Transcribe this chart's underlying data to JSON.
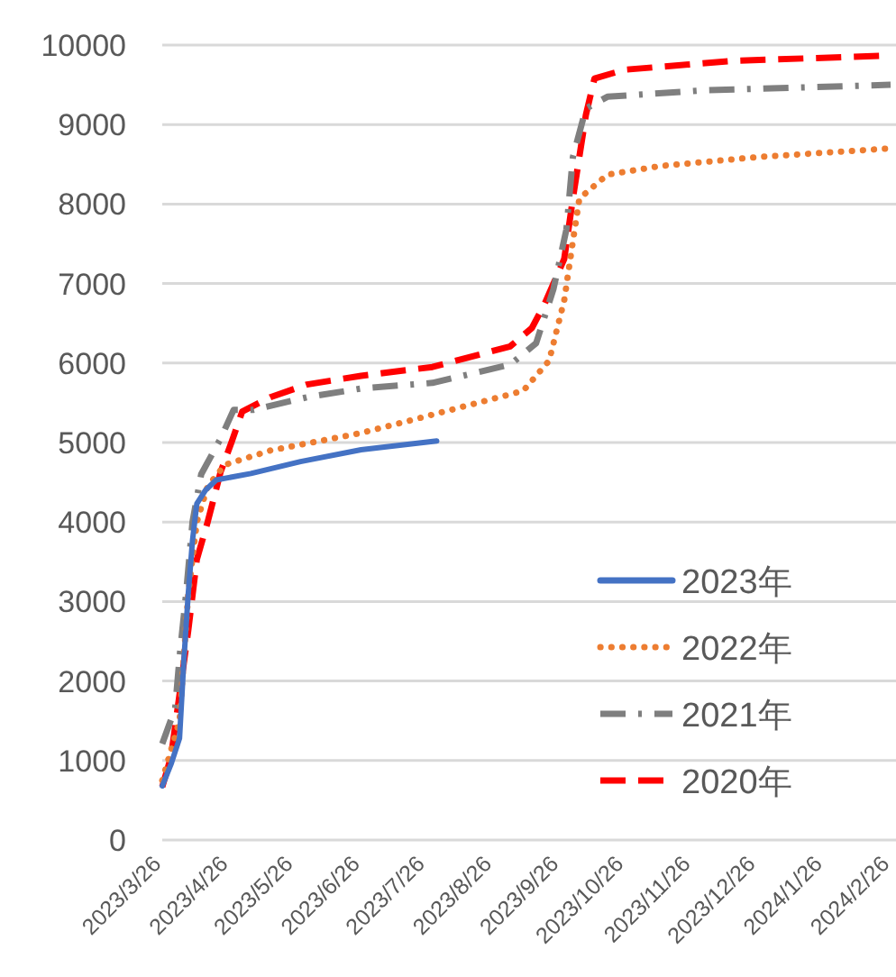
{
  "chart_data": {
    "type": "line",
    "xlim": [
      "2023-03-26",
      "2024-02-26"
    ],
    "xticks": [
      {
        "value": "2023-03-26",
        "label": "2023/3/26"
      },
      {
        "value": "2023-04-26",
        "label": "2023/4/26"
      },
      {
        "value": "2023-05-26",
        "label": "2023/5/26"
      },
      {
        "value": "2023-06-26",
        "label": "2023/6/26"
      },
      {
        "value": "2023-07-26",
        "label": "2023/7/26"
      },
      {
        "value": "2023-08-26",
        "label": "2023/8/26"
      },
      {
        "value": "2023-09-26",
        "label": "2023/9/26"
      },
      {
        "value": "2023-10-26",
        "label": "2023/10/26"
      },
      {
        "value": "2023-11-26",
        "label": "2023/11/26"
      },
      {
        "value": "2023-12-26",
        "label": "2023/12/26"
      },
      {
        "value": "2024-01-26",
        "label": "2024/1/26"
      },
      {
        "value": "2024-02-26",
        "label": "2024/2/26"
      }
    ],
    "ylim": [
      0,
      10000
    ],
    "yticks": [
      0,
      1000,
      2000,
      3000,
      4000,
      5000,
      6000,
      7000,
      8000,
      9000,
      10000
    ],
    "grid": "y",
    "legend": "bottom right",
    "marker": "none",
    "series": [
      {
        "name": "2023年",
        "color": "#4472c4",
        "line_style": "solid",
        "x": [
          "2023-03-26",
          "2023-03-30",
          "2023-04-03",
          "2023-04-05",
          "2023-04-07",
          "2023-04-09",
          "2023-04-11",
          "2023-04-15",
          "2023-04-20",
          "2023-05-06",
          "2023-05-29",
          "2023-06-26",
          "2023-07-31"
        ],
        "values": [
          680,
          950,
          1280,
          2260,
          3090,
          3770,
          4230,
          4400,
          4530,
          4610,
          4760,
          4910,
          5020
        ]
      },
      {
        "name": "2022年",
        "color": "#ed7d31",
        "line_style": "dotted",
        "x": [
          "2023-03-26",
          "2023-04-03",
          "2023-04-07",
          "2023-04-11",
          "2023-04-16",
          "2023-04-24",
          "2023-05-15",
          "2023-06-26",
          "2023-07-29",
          "2023-09-09",
          "2023-09-21",
          "2023-09-28",
          "2023-10-02",
          "2023-10-05",
          "2023-10-18",
          "2023-11-12",
          "2023-12-26",
          "2024-02-26"
        ],
        "values": [
          750,
          1500,
          3090,
          4000,
          4450,
          4720,
          4900,
          5120,
          5350,
          5650,
          6030,
          6790,
          7530,
          8070,
          8370,
          8480,
          8590,
          8700
        ]
      },
      {
        "name": "2021年",
        "color": "#7f7f7f",
        "line_style": "dashdot",
        "x": [
          "2023-03-26",
          "2023-04-01",
          "2023-04-03",
          "2023-04-06",
          "2023-04-09",
          "2023-04-13",
          "2023-04-22",
          "2023-04-28",
          "2023-05-07",
          "2023-06-01",
          "2023-06-26",
          "2023-07-29",
          "2023-09-03",
          "2023-09-15",
          "2023-09-23",
          "2023-09-29",
          "2023-10-02",
          "2023-10-08",
          "2023-10-18",
          "2023-12-01",
          "2024-02-26"
        ],
        "values": [
          1210,
          1660,
          2300,
          3090,
          4000,
          4600,
          5050,
          5410,
          5410,
          5570,
          5680,
          5750,
          5980,
          6250,
          6930,
          7680,
          8590,
          9200,
          9350,
          9430,
          9500
        ]
      },
      {
        "name": "2020年",
        "color": "#ff0000",
        "line_style": "dashed",
        "x": [
          "2023-03-26",
          "2023-03-30",
          "2023-04-03",
          "2023-04-07",
          "2023-04-11",
          "2023-04-16",
          "2023-04-22",
          "2023-04-27",
          "2023-05-02",
          "2023-05-15",
          "2023-06-01",
          "2023-06-26",
          "2023-07-29",
          "2023-09-03",
          "2023-09-13",
          "2023-09-19",
          "2023-09-28",
          "2023-10-02",
          "2023-10-08",
          "2023-10-12",
          "2023-10-26",
          "2023-12-15",
          "2024-02-26"
        ],
        "values": [
          670,
          1040,
          1830,
          2630,
          3530,
          4000,
          4630,
          5000,
          5390,
          5570,
          5730,
          5840,
          5950,
          6210,
          6440,
          6750,
          7310,
          8070,
          9120,
          9580,
          9690,
          9800,
          9870
        ]
      }
    ]
  }
}
